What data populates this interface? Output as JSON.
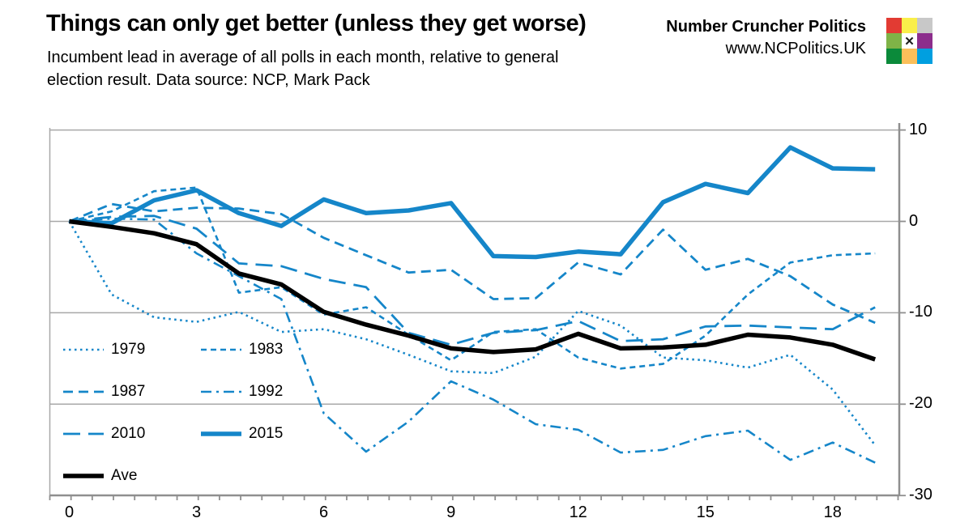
{
  "header": {
    "title": "Things can only get better (unless they get worse)",
    "subtitle_line1": "Incumbent lead in average of all polls in each month, relative to general",
    "subtitle_line2": "election result. Data source: NCP, Mark Pack",
    "brand_name": "Number Cruncher Politics",
    "brand_url": "www.NCPolitics.UK"
  },
  "logo": {
    "x_glyph": "✕",
    "cells": [
      {
        "name": "red-square",
        "color": "#e23b33"
      },
      {
        "name": "yellow-square",
        "color": "#f9ef4a"
      },
      {
        "name": "gray-square",
        "color": "#c8c8c8"
      },
      {
        "name": "light-green-square",
        "color": "#7fb347"
      },
      {
        "name": "x-square",
        "color": "#ffffff"
      },
      {
        "name": "purple-square",
        "color": "#8c2d8c"
      },
      {
        "name": "dark-green-square",
        "color": "#0b8a3a"
      },
      {
        "name": "amber-square",
        "color": "#fbbf5a"
      },
      {
        "name": "blue-square",
        "color": "#009fe0"
      }
    ]
  },
  "chart_data": {
    "type": "line",
    "title": "Things can only get better (unless they get worse)",
    "xlabel": "",
    "ylabel": "",
    "x_months": [
      0,
      1,
      2,
      3,
      4,
      5,
      6,
      7,
      8,
      9,
      10,
      11,
      12,
      13,
      14,
      15,
      16,
      17,
      18,
      19
    ],
    "x_tick_values": [
      0,
      3,
      6,
      9,
      12,
      15,
      18
    ],
    "x_tick_labels": [
      "0",
      "3",
      "6",
      "9",
      "12",
      "15",
      "18"
    ],
    "y_tick_values": [
      10,
      0,
      -10,
      -20,
      -30
    ],
    "y_tick_labels": [
      "10",
      "0",
      "-10",
      "-20",
      "-30"
    ],
    "xlim": [
      0,
      19.6
    ],
    "ylim": [
      -30,
      10
    ],
    "grid": "horizontal-only",
    "legend_position": "inside-left",
    "line_color_blue": "#1586c9",
    "ave_color": "#000000",
    "axis_color": "#8f8f8f",
    "gridline_color": "#a8a8a8",
    "series": [
      {
        "name": "1979",
        "style": "dotted",
        "values": [
          0,
          -8.0,
          -10.5,
          -11.0,
          -9.9,
          -12.1,
          -11.8,
          -12.9,
          -14.6,
          -16.4,
          -16.6,
          -14.8,
          -9.8,
          -11.4,
          -14.9,
          -15.2,
          -16.0,
          -14.6,
          -18.4,
          -24.5
        ]
      },
      {
        "name": "1983",
        "style": "short-dash",
        "values": [
          0,
          1.1,
          3.3,
          3.7,
          -7.8,
          -7.2,
          -10.2,
          -9.4,
          -12.4,
          -15.2,
          -12.1,
          -11.8,
          -14.9,
          -16.1,
          -15.6,
          -12.5,
          -8.0,
          -4.5,
          -3.7,
          -3.5
        ]
      },
      {
        "name": "1987",
        "style": "medium-dash",
        "values": [
          0,
          1.9,
          1.1,
          1.5,
          1.4,
          0.8,
          -1.8,
          -3.7,
          -5.6,
          -5.3,
          -8.5,
          -8.4,
          -4.5,
          -5.8,
          -0.9,
          -5.3,
          -4.1,
          -6.0,
          -9.1,
          -11.1
        ]
      },
      {
        "name": "1992",
        "style": "dash-dot",
        "values": [
          0,
          0.3,
          0.2,
          -3.5,
          -6.0,
          -8.5,
          -21.0,
          -25.2,
          -21.9,
          -17.5,
          -19.5,
          -22.2,
          -22.8,
          -25.3,
          -25.0,
          -23.5,
          -22.9,
          -26.1,
          -24.2,
          -26.4
        ]
      },
      {
        "name": "2010",
        "style": "long-dash",
        "values": [
          0,
          0.5,
          0.6,
          -0.8,
          -4.6,
          -4.9,
          -6.3,
          -7.2,
          -12.2,
          -13.5,
          -12.2,
          -11.9,
          -10.9,
          -13.1,
          -12.9,
          -11.5,
          -11.4,
          -11.6,
          -11.8,
          -9.4
        ]
      },
      {
        "name": "2015",
        "style": "solid-thick",
        "values": [
          0,
          -0.2,
          2.3,
          3.4,
          0.9,
          -0.5,
          2.4,
          0.9,
          1.2,
          2.0,
          -3.8,
          -3.9,
          -3.3,
          -3.6,
          2.1,
          4.1,
          3.1,
          8.1,
          5.8,
          5.7
        ]
      },
      {
        "name": "Ave",
        "style": "solid-thick-black",
        "values": [
          0,
          -0.6,
          -1.3,
          -2.5,
          -5.7,
          -6.9,
          -9.9,
          -11.3,
          -12.5,
          -13.9,
          -14.3,
          -14.0,
          -12.3,
          -13.9,
          -13.8,
          -13.5,
          -12.4,
          -12.7,
          -13.5,
          -15.1
        ]
      }
    ]
  }
}
